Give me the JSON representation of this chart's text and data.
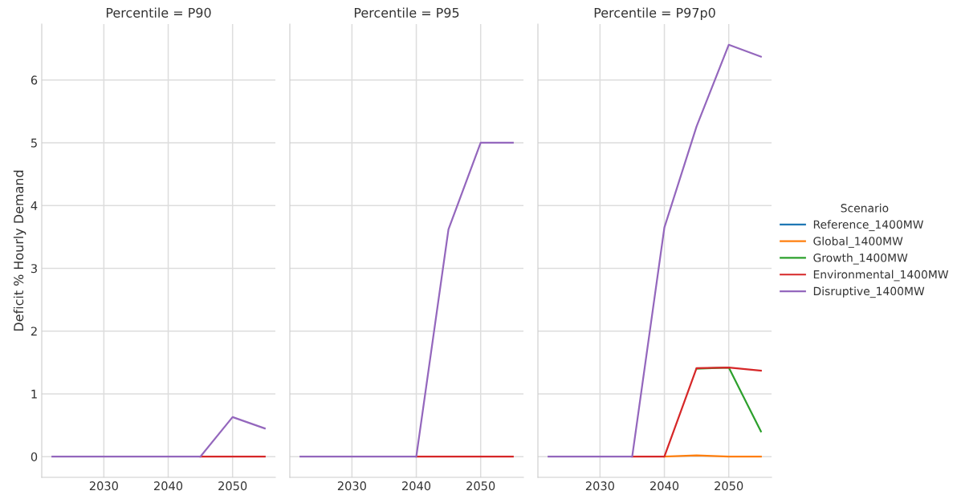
{
  "chart_data": [
    {
      "type": "line",
      "title": "Percentile = P90",
      "ylabel": "Deficit % Hourly Demand",
      "x": [
        2022,
        2025,
        2030,
        2035,
        2040,
        2045,
        2050,
        2055
      ],
      "xlim": [
        2020.35,
        2056.65
      ],
      "xticks": [
        2030,
        2040,
        2050
      ],
      "ylim": [
        -0.33,
        6.89
      ],
      "yticks": [
        0,
        1,
        2,
        3,
        4,
        5,
        6
      ],
      "grid": true,
      "series": [
        {
          "color": "#d62728",
          "values": [
            null,
            null,
            null,
            null,
            null,
            0,
            0,
            0
          ]
        },
        {
          "color": "#9467bd",
          "values": [
            0,
            0,
            0,
            0,
            0,
            0,
            0.63,
            0.45
          ]
        }
      ]
    },
    {
      "type": "line",
      "title": "Percentile = P95",
      "x": [
        2022,
        2025,
        2030,
        2035,
        2040,
        2045,
        2050,
        2055
      ],
      "xlim": [
        2020.35,
        2056.65
      ],
      "xticks": [
        2030,
        2040,
        2050
      ],
      "ylim": [
        -0.33,
        6.89
      ],
      "yticks": [
        0,
        1,
        2,
        3,
        4,
        5,
        6
      ],
      "tick_labels": "x",
      "grid": true,
      "series": [
        {
          "color": "#d62728",
          "values": [
            null,
            null,
            null,
            null,
            0,
            0,
            0,
            0
          ]
        },
        {
          "color": "#9467bd",
          "values": [
            0,
            0,
            0,
            0,
            0,
            3.62,
            5.0,
            5.0
          ]
        }
      ]
    },
    {
      "type": "line",
      "title": "Percentile = P97p0",
      "x": [
        2022,
        2025,
        2030,
        2035,
        2040,
        2045,
        2050,
        2055
      ],
      "xlim": [
        2020.35,
        2056.65
      ],
      "xticks": [
        2030,
        2040,
        2050
      ],
      "ylim": [
        -0.33,
        6.89
      ],
      "yticks": [
        0,
        1,
        2,
        3,
        4,
        5,
        6
      ],
      "tick_labels": "x",
      "grid": true,
      "legend": "right",
      "legend_title": "Scenario",
      "series": [
        {
          "name": "Reference_1400MW",
          "color": "#1f77b4",
          "values": [
            null,
            null,
            null,
            null,
            null,
            null,
            null,
            null
          ]
        },
        {
          "name": "Global_1400MW",
          "color": "#ff7f0e",
          "values": [
            null,
            null,
            null,
            null,
            0,
            0.02,
            0,
            0
          ]
        },
        {
          "name": "Growth_1400MW",
          "color": "#2ca02c",
          "values": [
            null,
            null,
            null,
            null,
            null,
            1.4,
            1.42,
            0.4
          ]
        },
        {
          "name": "Environmental_1400MW",
          "color": "#d62728",
          "values": [
            null,
            null,
            null,
            0,
            0,
            1.41,
            1.42,
            1.37
          ]
        },
        {
          "name": "Disruptive_1400MW",
          "color": "#9467bd",
          "values": [
            0,
            0,
            0,
            0,
            3.65,
            5.26,
            6.56,
            6.37
          ]
        }
      ]
    }
  ]
}
